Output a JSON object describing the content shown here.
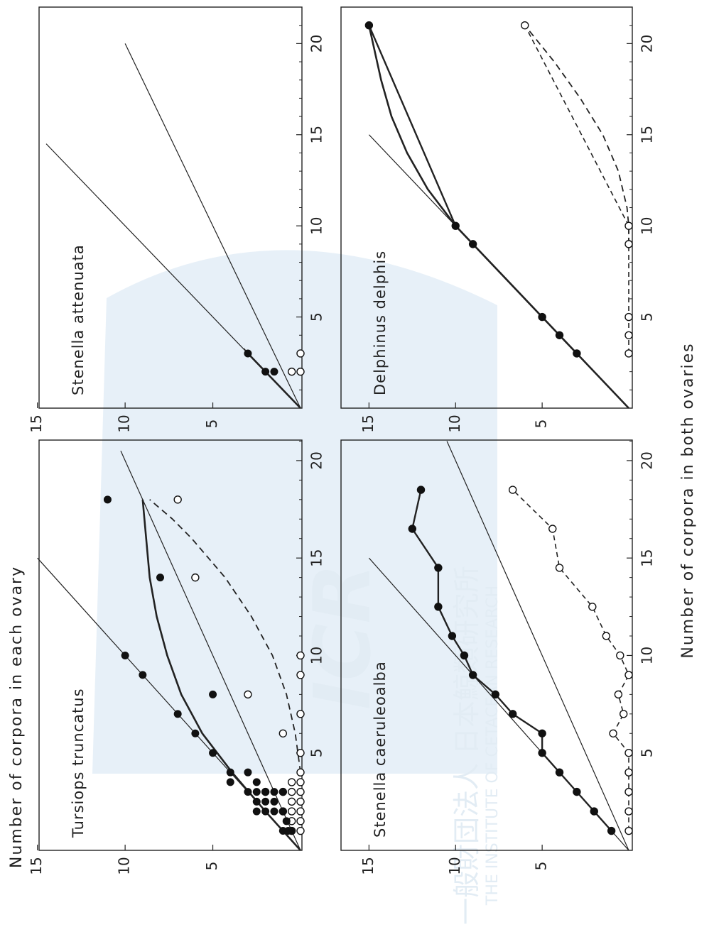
{
  "figure": {
    "x_axis_label": "Number of corpora in both ovaries",
    "y_axis_label": "Number of corpora in each ovary",
    "watermark": {
      "logo_text": "ICR",
      "japanese": "一般財団法人 日本鯨類研究所",
      "english": "THE INSTITUTE OF CETACEAN RESEARCH"
    }
  },
  "chart_data": [
    {
      "type": "scatter",
      "title": "Tursiops truncatus",
      "xlim": [
        0,
        22
      ],
      "ylim": [
        0,
        16
      ],
      "xticks": [
        5,
        10,
        15,
        20
      ],
      "yticks": [
        5,
        10,
        15
      ],
      "filled_points": [
        [
          1,
          1
        ],
        [
          1,
          0.5
        ],
        [
          1,
          0.7
        ],
        [
          1.5,
          0.8
        ],
        [
          2,
          1
        ],
        [
          2,
          2
        ],
        [
          2,
          1.5
        ],
        [
          2,
          2.5
        ],
        [
          2.5,
          2
        ],
        [
          2.5,
          1.5
        ],
        [
          2.5,
          2.5
        ],
        [
          3,
          3
        ],
        [
          3,
          2
        ],
        [
          3,
          2.5
        ],
        [
          3,
          1.5
        ],
        [
          3,
          1
        ],
        [
          3.5,
          2.5
        ],
        [
          3.5,
          4
        ],
        [
          4,
          3
        ],
        [
          4,
          4
        ],
        [
          5,
          5
        ],
        [
          6,
          6
        ],
        [
          7,
          7
        ],
        [
          8,
          5
        ],
        [
          9,
          9
        ],
        [
          10,
          10
        ],
        [
          14,
          8
        ],
        [
          18,
          11
        ]
      ],
      "open_points": [
        [
          1,
          0
        ],
        [
          1.5,
          0
        ],
        [
          2,
          0
        ],
        [
          2.5,
          0
        ],
        [
          3,
          0
        ],
        [
          3.5,
          0
        ],
        [
          4,
          0
        ],
        [
          5,
          0
        ],
        [
          7,
          0
        ],
        [
          9,
          0
        ],
        [
          10,
          0
        ],
        [
          1,
          0.5
        ],
        [
          1.5,
          0.5
        ],
        [
          2,
          0.5
        ],
        [
          2.5,
          0.5
        ],
        [
          3,
          0.5
        ],
        [
          3.5,
          0.5
        ],
        [
          2,
          1
        ],
        [
          3,
          1
        ],
        [
          3,
          2
        ],
        [
          6,
          1
        ],
        [
          8,
          3
        ],
        [
          14,
          6
        ],
        [
          18,
          7
        ]
      ],
      "lines": [
        {
          "kind": "reference",
          "style": "thin",
          "points": [
            [
              0,
              0
            ],
            [
              15,
              15
            ]
          ]
        },
        {
          "kind": "reference",
          "style": "thin",
          "points": [
            [
              0,
              0
            ],
            [
              20.5,
              10.25
            ]
          ]
        },
        {
          "kind": "fit-larger",
          "style": "thick",
          "points": [
            [
              0,
              0
            ],
            [
              2,
              2
            ],
            [
              4,
              3.9
            ],
            [
              6,
              5.6
            ],
            [
              8,
              6.8
            ],
            [
              10,
              7.6
            ],
            [
              12,
              8.2
            ],
            [
              14,
              8.6
            ],
            [
              16,
              8.8
            ],
            [
              18,
              9
            ]
          ]
        },
        {
          "kind": "fit-smaller",
          "style": "dashed",
          "points": [
            [
              4,
              0
            ],
            [
              6,
              0.3
            ],
            [
              8,
              0.8
            ],
            [
              10,
              1.6
            ],
            [
              12,
              2.8
            ],
            [
              14,
              4.3
            ],
            [
              16,
              6.2
            ],
            [
              17,
              7.3
            ],
            [
              18,
              8.6
            ]
          ]
        }
      ]
    },
    {
      "type": "scatter",
      "title": "Stenella attenuata",
      "xlim": [
        0,
        22
      ],
      "ylim": [
        0,
        16
      ],
      "xticks": [
        5,
        10,
        15,
        20
      ],
      "yticks": [
        5,
        10,
        15
      ],
      "filled_points": [
        [
          2,
          1.5
        ],
        [
          2,
          2
        ],
        [
          3,
          3
        ]
      ],
      "open_points": [
        [
          2,
          0
        ],
        [
          2,
          0.5
        ],
        [
          3,
          0
        ]
      ],
      "lines": [
        {
          "kind": "reference",
          "style": "thin",
          "points": [
            [
              0,
              0
            ],
            [
              14.5,
              14.5
            ]
          ]
        },
        {
          "kind": "reference",
          "style": "thin",
          "points": [
            [
              0,
              0
            ],
            [
              20,
              10
            ]
          ]
        },
        {
          "kind": "fit-larger",
          "style": "thick",
          "points": [
            [
              0,
              0
            ],
            [
              3,
              3
            ]
          ]
        },
        {
          "kind": "fit-smaller",
          "style": "dashed",
          "points": [
            [
              3,
              3
            ],
            [
              3.4,
              3.35
            ]
          ]
        }
      ]
    },
    {
      "type": "line",
      "title": "Stenella caeruleoalba",
      "xlim": [
        0,
        22
      ],
      "ylim": [
        0,
        16
      ],
      "xticks": [
        5,
        10,
        15,
        20
      ],
      "yticks": [
        5,
        10,
        15
      ],
      "series": [
        {
          "style": "solid-filled",
          "points": [
            [
              1,
              1
            ],
            [
              2,
              2
            ],
            [
              3,
              3
            ],
            [
              4,
              4
            ],
            [
              5,
              5
            ],
            [
              6,
              5
            ],
            [
              7,
              6.7
            ],
            [
              8,
              7.7
            ],
            [
              9,
              9
            ],
            [
              10,
              9.5
            ],
            [
              11,
              10.2
            ],
            [
              12.5,
              11
            ],
            [
              14.5,
              11
            ],
            [
              16.5,
              12.5
            ],
            [
              18.5,
              12
            ]
          ]
        },
        {
          "style": "dashed-open",
          "points": [
            [
              1,
              0
            ],
            [
              2,
              0
            ],
            [
              3,
              0
            ],
            [
              4,
              0
            ],
            [
              5,
              0
            ],
            [
              6,
              0.9
            ],
            [
              7,
              0.3
            ],
            [
              8,
              0.6
            ],
            [
              9,
              0
            ],
            [
              10,
              0.5
            ],
            [
              11,
              1.3
            ],
            [
              12.5,
              2.1
            ],
            [
              14.5,
              4
            ],
            [
              16.5,
              4.4
            ],
            [
              18.5,
              6.7
            ]
          ]
        }
      ],
      "lines": [
        {
          "kind": "reference",
          "style": "thin",
          "points": [
            [
              0,
              0
            ],
            [
              15,
              15
            ]
          ]
        },
        {
          "kind": "reference",
          "style": "thin",
          "points": [
            [
              0,
              0
            ],
            [
              21,
              10.5
            ]
          ]
        }
      ]
    },
    {
      "type": "line",
      "title": "Delphinus delphis",
      "xlim": [
        0,
        22
      ],
      "ylim": [
        0,
        16
      ],
      "xticks": [
        5,
        10,
        15,
        20
      ],
      "yticks": [
        5,
        10,
        15
      ],
      "series": [
        {
          "style": "solid-filled",
          "points": [
            [
              3,
              3
            ],
            [
              4,
              4
            ],
            [
              5,
              5
            ],
            [
              9,
              9
            ],
            [
              10,
              10
            ],
            [
              21,
              15
            ]
          ]
        },
        {
          "style": "dashed-open",
          "points": [
            [
              3,
              0
            ],
            [
              4,
              0
            ],
            [
              5,
              0
            ],
            [
              9,
              0
            ],
            [
              10,
              0
            ],
            [
              21,
              6
            ]
          ]
        }
      ],
      "lines": [
        {
          "kind": "reference",
          "style": "thin",
          "points": [
            [
              0,
              0
            ],
            [
              15,
              15
            ]
          ]
        },
        {
          "kind": "fit-larger",
          "style": "thick",
          "points": [
            [
              0,
              0
            ],
            [
              5,
              5
            ],
            [
              9,
              9
            ],
            [
              10,
              10
            ],
            [
              12,
              11.6
            ],
            [
              14,
              12.8
            ],
            [
              16,
              13.7
            ],
            [
              18,
              14.3
            ],
            [
              21,
              15
            ]
          ]
        },
        {
          "kind": "fit-smaller",
          "style": "dashed",
          "points": [
            [
              9,
              0
            ],
            [
              10,
              0
            ],
            [
              11,
              0.1
            ],
            [
              13,
              0.6
            ],
            [
              15,
              1.5
            ],
            [
              17,
              2.8
            ],
            [
              19,
              4.3
            ],
            [
              21,
              6
            ]
          ]
        }
      ]
    }
  ]
}
